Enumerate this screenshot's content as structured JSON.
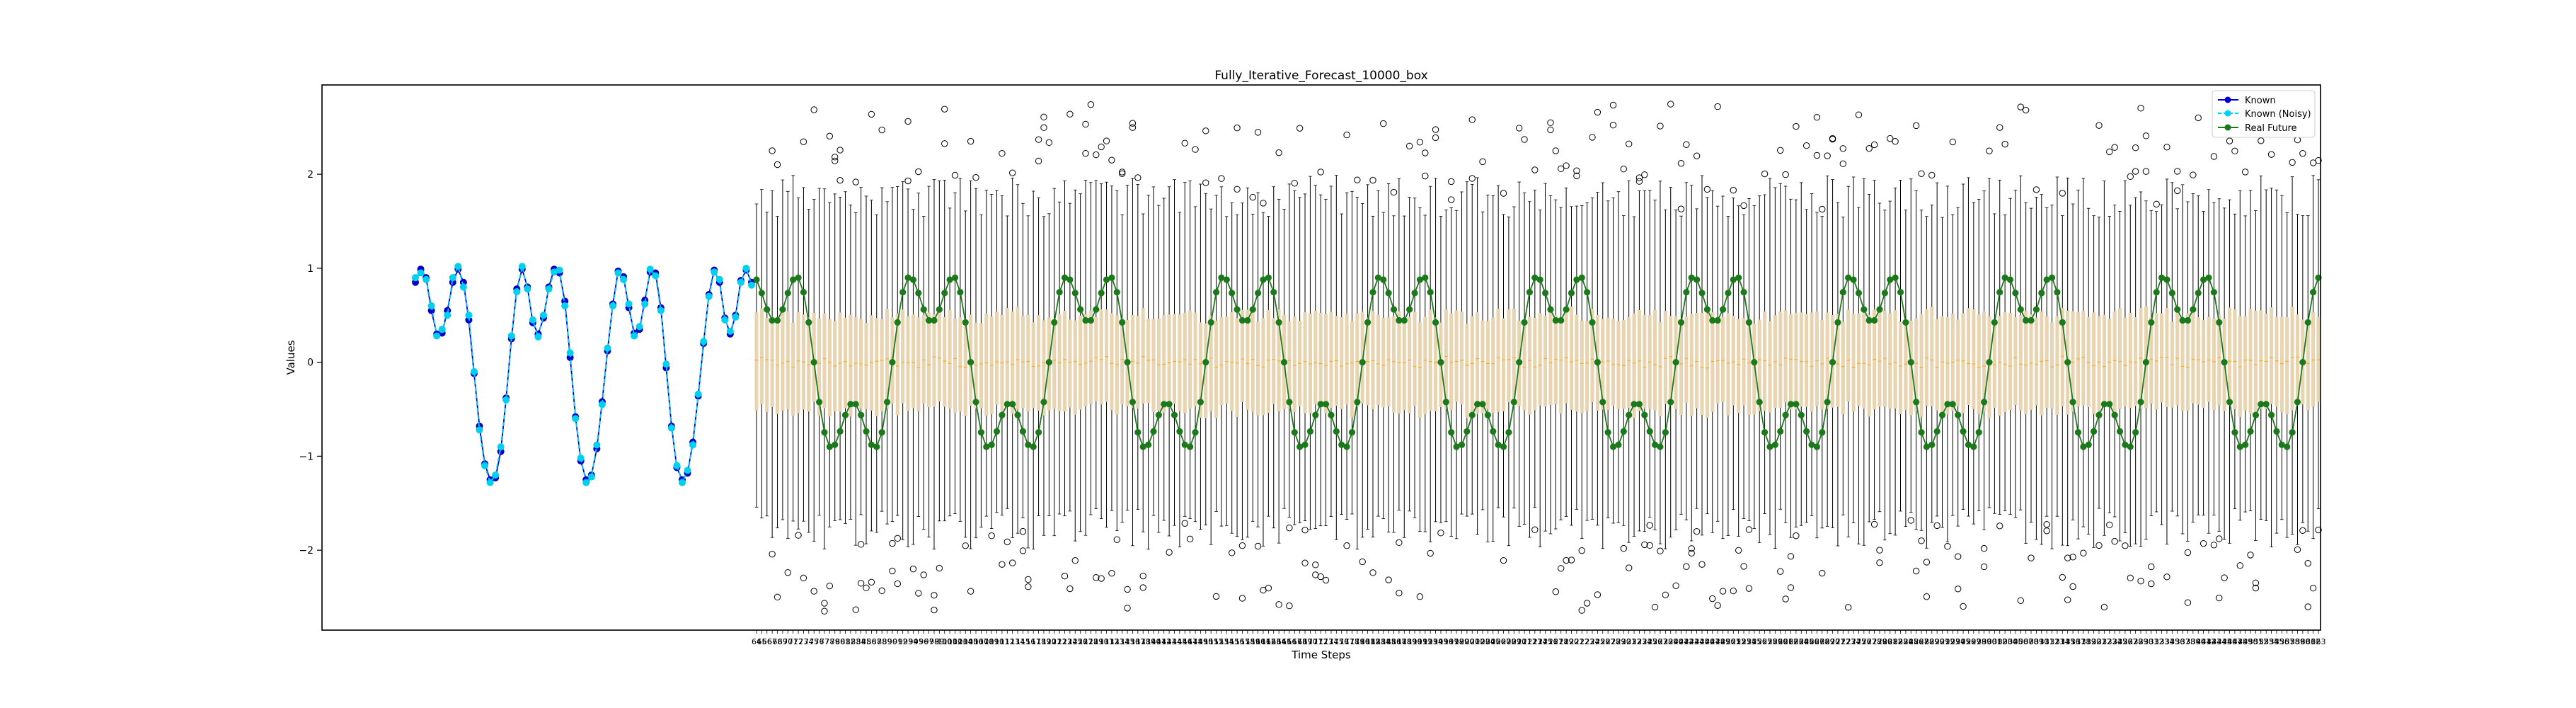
{
  "chart_data": {
    "type": "line",
    "title": "Fully_Iterative_Forecast_10000_box",
    "xlabel": "Time Steps",
    "ylabel": "Values",
    "ylim": [
      -2.85,
      2.95
    ],
    "yticks": [
      -2,
      -1,
      0,
      1,
      2
    ],
    "legend_position": "top-right",
    "grid": false,
    "known_length": 64,
    "forecast_length": 300,
    "series": [
      {
        "name": "Known",
        "color": "#0000cc",
        "marker": "circle",
        "line": "solid",
        "values": [
          0.85,
          0.99,
          0.9,
          0.55,
          0.3,
          0.31,
          0.55,
          0.85,
          0.99,
          0.85,
          0.45,
          -0.12,
          -0.68,
          -1.08,
          -1.25,
          -1.23,
          -0.95,
          -0.38,
          0.25,
          0.78,
          0.99,
          0.8,
          0.42,
          0.3,
          0.47,
          0.8,
          0.99,
          0.95,
          0.65,
          0.05,
          -0.58,
          -1.05,
          -1.25,
          -1.2,
          -0.92,
          -0.42,
          0.12,
          0.62,
          0.97,
          0.91,
          0.58,
          0.31,
          0.35,
          0.66,
          0.96,
          0.95,
          0.58,
          -0.06,
          -0.68,
          -1.12,
          -1.25,
          -1.18,
          -0.85,
          -0.36,
          0.2,
          0.72,
          0.98,
          0.85,
          0.47,
          0.3,
          0.5,
          0.87,
          0.98,
          0.85
        ]
      },
      {
        "name": "Known (Noisy)",
        "color": "#00d0f0",
        "marker": "circle",
        "line": "dashed",
        "values": [
          0.9,
          0.95,
          0.88,
          0.6,
          0.28,
          0.35,
          0.5,
          0.9,
          1.02,
          0.8,
          0.5,
          -0.1,
          -0.72,
          -1.1,
          -1.28,
          -1.2,
          -0.9,
          -0.4,
          0.28,
          0.75,
          1.02,
          0.78,
          0.45,
          0.27,
          0.5,
          0.78,
          0.96,
          0.98,
          0.6,
          0.1,
          -0.6,
          -1.02,
          -1.28,
          -1.22,
          -0.88,
          -0.45,
          0.15,
          0.6,
          0.95,
          0.88,
          0.62,
          0.28,
          0.38,
          0.62,
          0.99,
          0.92,
          0.55,
          -0.02,
          -0.7,
          -1.1,
          -1.28,
          -1.15,
          -0.88,
          -0.34,
          0.22,
          0.7,
          0.96,
          0.88,
          0.45,
          0.33,
          0.48,
          0.85,
          1.0,
          0.82
        ]
      },
      {
        "name": "Real Future",
        "color": "#1a7a1a",
        "marker": "circle",
        "line": "solid",
        "function": "y = 0.85*sin(2*pi*t/30) + 0.42*sin(2*pi*t/10), t = time step index",
        "x_range": [
          64,
          363
        ]
      }
    ],
    "forecast_distribution": {
      "type": "box",
      "count": 300,
      "box_color": "#e8d4b0",
      "median_color": "#ffa500",
      "quartile_range": [
        -0.5,
        0.5
      ],
      "whisker_range": [
        -1.9,
        1.9
      ],
      "outlier_range": [
        -2.6,
        2.7
      ]
    },
    "legend": [
      "Known",
      "Known (Noisy)",
      "Real Future"
    ]
  }
}
